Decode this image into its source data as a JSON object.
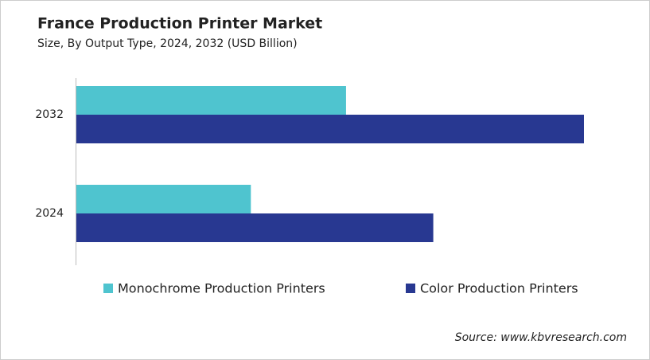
{
  "chart_data": {
    "type": "bar",
    "orientation": "horizontal",
    "title": "France Production Printer Market",
    "subtitle": "Size, By Output Type, 2024, 2032 (USD Billion)",
    "categories": [
      "2032",
      "2024"
    ],
    "series": [
      {
        "name": "Monochrome Production Printers",
        "color": "#4fc4cf",
        "values": [
          0.34,
          0.22
        ]
      },
      {
        "name": "Color Production Printers",
        "color": "#283891",
        "values": [
          0.64,
          0.45
        ]
      }
    ],
    "source": "Source: www.kbvresearch.com"
  }
}
